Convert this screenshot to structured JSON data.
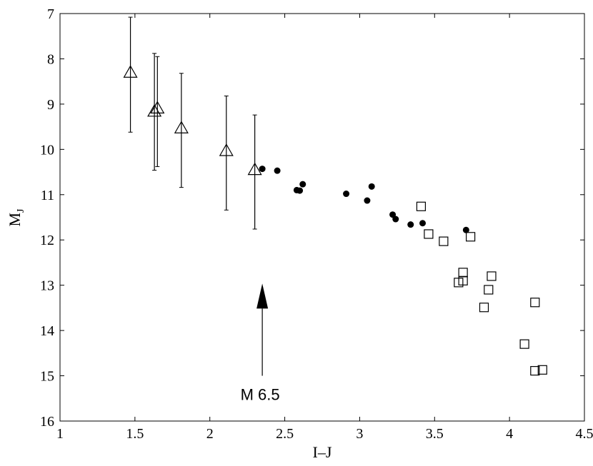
{
  "chart_data": {
    "type": "scatter",
    "title": "",
    "xlabel": "I–J",
    "ylabel": {
      "main": "M",
      "sub": "J"
    },
    "xlim": [
      1,
      4.5
    ],
    "ylim": [
      7,
      16
    ],
    "y_inverted": true,
    "grid": false,
    "x_ticks": [
      1,
      1.5,
      2,
      2.5,
      3,
      3.5,
      4,
      4.5
    ],
    "x_tick_labels": [
      "1",
      "1.5",
      "2",
      "2.5",
      "3",
      "3.5",
      "4",
      "4.5"
    ],
    "y_ticks": [
      7,
      8,
      9,
      10,
      11,
      12,
      13,
      14,
      15,
      16
    ],
    "y_tick_labels": [
      "7",
      "8",
      "9",
      "10",
      "11",
      "12",
      "13",
      "14",
      "15",
      "16"
    ],
    "series": [
      {
        "marker": "open-triangle",
        "points": [
          {
            "x": 1.47,
            "y": 8.3,
            "err_low": 7.08,
            "err_high": 9.62
          },
          {
            "x": 1.63,
            "y": 9.16,
            "err_low": 7.88,
            "err_high": 10.46
          },
          {
            "x": 1.65,
            "y": 9.09,
            "err_low": 7.95,
            "err_high": 10.38
          },
          {
            "x": 1.81,
            "y": 9.53,
            "err_low": 8.32,
            "err_high": 10.84
          },
          {
            "x": 2.11,
            "y": 10.03,
            "err_low": 8.82,
            "err_high": 11.34
          },
          {
            "x": 2.3,
            "y": 10.45,
            "err_low": 9.24,
            "err_high": 11.76
          }
        ]
      },
      {
        "marker": "filled-circle",
        "points": [
          {
            "x": 2.35,
            "y": 10.43
          },
          {
            "x": 2.45,
            "y": 10.47
          },
          {
            "x": 2.58,
            "y": 10.9
          },
          {
            "x": 2.6,
            "y": 10.91
          },
          {
            "x": 2.62,
            "y": 10.77
          },
          {
            "x": 2.91,
            "y": 10.98
          },
          {
            "x": 3.05,
            "y": 11.13
          },
          {
            "x": 3.08,
            "y": 10.82
          },
          {
            "x": 3.22,
            "y": 11.44
          },
          {
            "x": 3.24,
            "y": 11.54
          },
          {
            "x": 3.34,
            "y": 11.66
          },
          {
            "x": 3.42,
            "y": 11.63
          },
          {
            "x": 3.71,
            "y": 11.78
          }
        ]
      },
      {
        "marker": "open-square",
        "points": [
          {
            "x": 3.41,
            "y": 11.26
          },
          {
            "x": 3.46,
            "y": 11.87
          },
          {
            "x": 3.56,
            "y": 12.03
          },
          {
            "x": 3.66,
            "y": 12.94
          },
          {
            "x": 3.69,
            "y": 12.72
          },
          {
            "x": 3.69,
            "y": 12.9
          },
          {
            "x": 3.74,
            "y": 11.93
          },
          {
            "x": 3.83,
            "y": 13.49
          },
          {
            "x": 3.86,
            "y": 13.1
          },
          {
            "x": 3.88,
            "y": 12.8
          },
          {
            "x": 4.1,
            "y": 14.3
          },
          {
            "x": 4.17,
            "y": 13.38
          },
          {
            "x": 4.17,
            "y": 14.89
          },
          {
            "x": 4.22,
            "y": 14.87
          }
        ]
      }
    ],
    "annotation": {
      "label": "M 6.5",
      "x": 2.35,
      "arrow_from_y": 15,
      "arrow_to_y": 13.2
    }
  }
}
